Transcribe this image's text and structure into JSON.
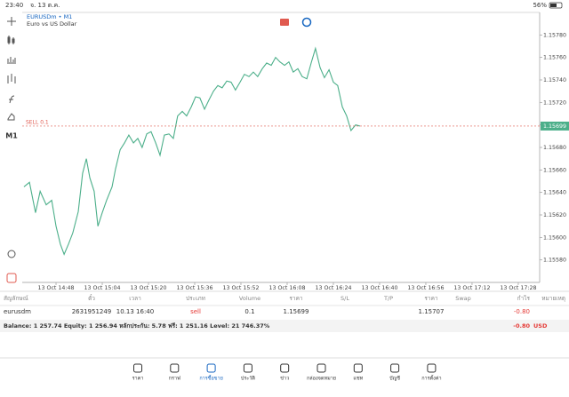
{
  "status_bar": {
    "time": "23:40",
    "date": "จ. 13 ต.ค.",
    "battery": "56%"
  },
  "symbol": {
    "name": "EURUSDm • M1",
    "description": "Euro vs US Dollar"
  },
  "toolbar": {
    "timeframe": "M1"
  },
  "chart_data": {
    "type": "line",
    "x": [
      876.9,
      878.8,
      880.9,
      882.5,
      884.6,
      886.5,
      888.0,
      889.5,
      890.8,
      892.3,
      893.8,
      895.7,
      897.2,
      898.5,
      899.7,
      901.2,
      902.5,
      904.0,
      905.5,
      907.4,
      908.6,
      910.2,
      911.7,
      913.2,
      914.8,
      916.3,
      917.8,
      919.4,
      920.9,
      922.5,
      924.0,
      925.5,
      927.1,
      928.6,
      930.1,
      931.7,
      933.2,
      934.8,
      936.3,
      937.8,
      939.4,
      940.9,
      942.5,
      944.0,
      945.5,
      947.1,
      948.6,
      950.1,
      951.7,
      953.2,
      954.8,
      956.3,
      957.8,
      959.4,
      960.9,
      962.5,
      964.0,
      965.5,
      967.1,
      968.6,
      970.1,
      971.7,
      973.2,
      974.8,
      976.3,
      977.8,
      979.4,
      980.9,
      982.5,
      984.0,
      985.5,
      987.1,
      988.6,
      990.1,
      991.7,
      993.2
    ],
    "series": [
      {
        "name": "EURUSDm",
        "color": "#4caf8a",
        "values": [
          1.15645,
          1.15649,
          1.15622,
          1.15641,
          1.15629,
          1.15633,
          1.1561,
          1.15594,
          1.15585,
          1.15594,
          1.15604,
          1.15623,
          1.15657,
          1.1567,
          1.15653,
          1.15641,
          1.1561,
          1.15622,
          1.15633,
          1.15645,
          1.15661,
          1.15678,
          1.15684,
          1.15691,
          1.15684,
          1.15688,
          1.1568,
          1.15692,
          1.15694,
          1.15684,
          1.15673,
          1.15691,
          1.15692,
          1.15688,
          1.15708,
          1.15712,
          1.15708,
          1.15716,
          1.15725,
          1.15724,
          1.15714,
          1.15722,
          1.1573,
          1.15735,
          1.15733,
          1.15739,
          1.15738,
          1.15731,
          1.15738,
          1.15745,
          1.15743,
          1.15747,
          1.15743,
          1.1575,
          1.15755,
          1.15753,
          1.1576,
          1.15756,
          1.15753,
          1.15756,
          1.15747,
          1.1575,
          1.15743,
          1.15741,
          1.15755,
          1.15768,
          1.15751,
          1.15742,
          1.15749,
          1.15738,
          1.15735,
          1.15716,
          1.15708,
          1.15695,
          1.157,
          1.15699
        ]
      }
    ],
    "xlim": [
      876.3,
      1055.4
    ],
    "xticks": [
      {
        "value": 888,
        "label": "13 Oct 14:48"
      },
      {
        "value": 904,
        "label": "13 Oct 15:04"
      },
      {
        "value": 920,
        "label": "13 Oct 15:20"
      },
      {
        "value": 936,
        "label": "13 Oct 15:36"
      },
      {
        "value": 952,
        "label": "13 Oct 15:52"
      },
      {
        "value": 968,
        "label": "13 Oct 16:08"
      },
      {
        "value": 984,
        "label": "13 Oct 16:24"
      },
      {
        "value": 1000,
        "label": "13 Oct 16:40"
      },
      {
        "value": 1016,
        "label": "13 Oct 16:56"
      },
      {
        "value": 1032,
        "label": "13 Oct 17:12"
      },
      {
        "value": 1048,
        "label": "13 Oct 17:28"
      }
    ],
    "ylim": [
      1.1556,
      1.158
    ],
    "yticks": [
      {
        "value": 1.1558,
        "label": "1.15580"
      },
      {
        "value": 1.156,
        "label": "1.15600"
      },
      {
        "value": 1.1562,
        "label": "1.15620"
      },
      {
        "value": 1.1564,
        "label": "1.15640"
      },
      {
        "value": 1.1566,
        "label": "1.15660"
      },
      {
        "value": 1.1568,
        "label": "1.15680"
      },
      {
        "value": 1.157,
        "label": "1.15700"
      },
      {
        "value": 1.1572,
        "label": "1.15720"
      },
      {
        "value": 1.1574,
        "label": "1.15740"
      },
      {
        "value": 1.1576,
        "label": "1.15760"
      },
      {
        "value": 1.1578,
        "label": "1.15780"
      }
    ],
    "grid": false,
    "order_line": {
      "label": "SELL 0.1",
      "price": 1.15699,
      "color": "#e05a4f",
      "badge_color": "#4caf8a"
    }
  },
  "table": {
    "headers": [
      "สัญลักษณ์",
      "ตั๋ว",
      "เวลา",
      "ประเภท",
      "Volume",
      "ราคา",
      "S/L",
      "T/P",
      "ราคา",
      "Swap",
      "กำไร",
      "หมายเหตุ"
    ],
    "rows": [
      [
        "eurusdm",
        "2631951249",
        "10.13 16:40",
        "sell",
        "0.1",
        "1.15699",
        null,
        null,
        "1.15707",
        null,
        "-0.80",
        null
      ]
    ]
  },
  "summary": {
    "text": "Balance: 1 257.74 Equity: 1 256.94 หลักประกัน: 5.78 ฟรี: 1 251.16 Level: 21 746.37%",
    "profit": "-0.80",
    "currency": "USD"
  },
  "tabs": [
    "ราคา",
    "กราฟ",
    "การซื้อขาย",
    "ประวัติ",
    "ข่าว",
    "กล่องจดหมาย",
    "แชท",
    "บัญชี",
    "การตั้งค่า"
  ],
  "active_tab": 2
}
